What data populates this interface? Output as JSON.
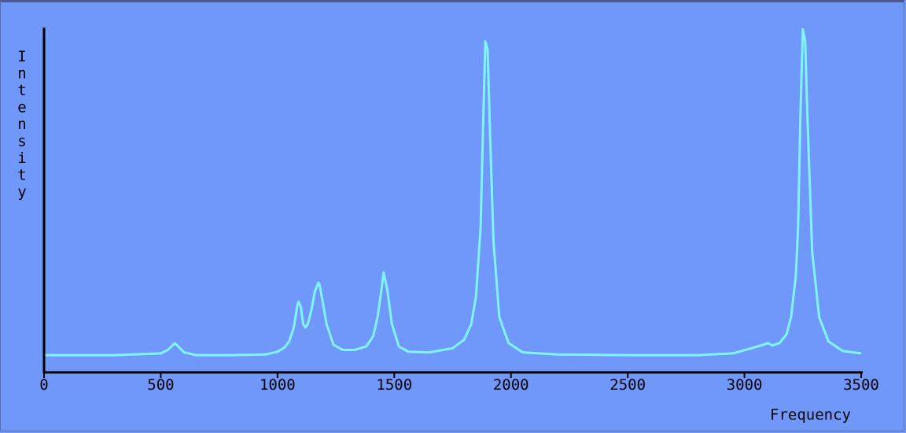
{
  "colors": {
    "background": "#7098fa",
    "line": "#7ff5fa",
    "axis": "#000000"
  },
  "chart_data": {
    "type": "line",
    "title": "",
    "xlabel": "Frequency",
    "ylabel": "Intensity",
    "xlim": [
      0,
      3500
    ],
    "ylim": [
      0,
      1.0
    ],
    "grid": false,
    "legend": "none",
    "x_ticks": [
      0,
      500,
      1000,
      1500,
      2000,
      2500,
      3000,
      3500
    ],
    "x_tick_labels": [
      "0",
      "500",
      "1000",
      "1500",
      "2000",
      "2500",
      "3000",
      "3500"
    ],
    "series": [
      {
        "x": [
          0,
          300,
          500,
          530,
          550,
          560,
          575,
          600,
          650,
          800,
          950,
          1000,
          1030,
          1050,
          1070,
          1085,
          1090,
          1100,
          1110,
          1120,
          1130,
          1145,
          1160,
          1175,
          1180,
          1195,
          1210,
          1240,
          1280,
          1330,
          1380,
          1410,
          1430,
          1445,
          1455,
          1470,
          1490,
          1520,
          1560,
          1650,
          1750,
          1800,
          1830,
          1850,
          1870,
          1880,
          1890,
          1900,
          1910,
          1925,
          1950,
          1990,
          2050,
          2200,
          2500,
          2800,
          2950,
          3030,
          3080,
          3100,
          3120,
          3150,
          3180,
          3200,
          3220,
          3230,
          3240,
          3250,
          3260,
          3270,
          3290,
          3320,
          3360,
          3420,
          3500
        ],
        "y": [
          0.05,
          0.05,
          0.055,
          0.065,
          0.078,
          0.085,
          0.075,
          0.058,
          0.05,
          0.05,
          0.052,
          0.06,
          0.072,
          0.09,
          0.13,
          0.195,
          0.205,
          0.19,
          0.14,
          0.13,
          0.14,
          0.18,
          0.235,
          0.26,
          0.255,
          0.2,
          0.14,
          0.08,
          0.065,
          0.065,
          0.075,
          0.105,
          0.165,
          0.24,
          0.29,
          0.24,
          0.14,
          0.075,
          0.06,
          0.058,
          0.07,
          0.095,
          0.14,
          0.22,
          0.42,
          0.7,
          0.96,
          0.935,
          0.7,
          0.38,
          0.16,
          0.085,
          0.058,
          0.052,
          0.05,
          0.05,
          0.055,
          0.07,
          0.08,
          0.085,
          0.078,
          0.085,
          0.11,
          0.16,
          0.28,
          0.42,
          0.75,
          0.995,
          0.96,
          0.74,
          0.35,
          0.16,
          0.09,
          0.062,
          0.055
        ]
      }
    ]
  }
}
